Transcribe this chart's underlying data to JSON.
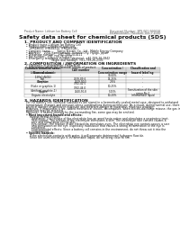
{
  "bg_color": "#ffffff",
  "header_left": "Product Name: Lithium Ion Battery Cell",
  "header_right_line1": "Document Number: SPS-001-000010",
  "header_right_line2": "Establishment / Revision: Dec.7.2010",
  "title": "Safety data sheet for chemical products (SDS)",
  "section1_title": "1. PRODUCT AND COMPANY IDENTIFICATION",
  "section1_lines": [
    "  • Product name: Lithium Ion Battery Cell",
    "  • Product code: Cylindrical-type cell",
    "      (IFR18650, IFR18650L, IFR18650A)",
    "  • Company name:       Sanyo Electric Co., Ltd., Mobile Energy Company",
    "  • Address:    2001 Kamikamachi, Sumoto-City, Hyogo, Japan",
    "  • Telephone number:    +81-799-24-4111",
    "  • Fax number:  +81-799-26-4129",
    "  • Emergency telephone number (daytime): +81-799-26-2842",
    "                              (Night and holiday): +81-799-26-2101"
  ],
  "section2_title": "2. COMPOSITION / INFORMATION ON INGREDIENTS",
  "section2_intro": "  • Substance or preparation: Preparation",
  "section2_sub": "  • Information about the chemical nature of product:",
  "table_col_headers": [
    "Common chemical name /\nGeneral name",
    "CAS number",
    "Concentration /\nConcentration range",
    "Classification and\nhazard labeling"
  ],
  "table_rows": [
    [
      "Lithium cobalt oxide\n(LiMnCoNiO4)",
      "-",
      "30-60%",
      "-"
    ],
    [
      "Iron",
      "7439-89-6",
      "15-25%",
      "-"
    ],
    [
      "Aluminum",
      "7429-90-5",
      "2-6%",
      "-"
    ],
    [
      "Graphite\n(Flake or graphite-1)\n(Artificial graphite-1)",
      "7782-42-5\n7782-44-0",
      "10-25%",
      "-"
    ],
    [
      "Copper",
      "7440-50-8",
      "5-15%",
      "Sensitization of the skin\ngroup No.2"
    ],
    [
      "Organic electrolyte",
      "-",
      "10-20%",
      "Inflammable liquid"
    ]
  ],
  "section3_title": "3. HAZARDS IDENTIFICATION",
  "section3_para1": "  For the battery cell, chemical substances are stored in a hermetically sealed metal case, designed to withstand",
  "section3_para2": "  temperature changes and pressure-stress combinations during normal use. As a result, during normal use, there is no",
  "section3_para3": "  physical danger of ignition or explosion and therefore danger of hazardous materials leakage.",
  "section3_para4": "  However, if exposed to a fire, added mechanical shocks, decomposes, when electro-discharge misuse, the gas inside cannot be operated. The battery cell case will be breached of fire-patterns, hazardous",
  "section3_para5": "  materials may be released.",
  "section3_para6": "  Moreover, if heated strongly by the surrounding fire, some gas may be emitted.",
  "effects_title": "  • Most important hazard and effects:",
  "human_title": "      Human health effects:",
  "human_lines": [
    "        Inhalation: The release of the electrolyte has an anesthesia action and stimulates a respiratory tract.",
    "        Skin contact: The release of the electrolyte stimulates a skin. The electrolyte skin contact causes a",
    "        sore and stimulation on the skin.",
    "        Eye contact: The release of the electrolyte stimulates eyes. The electrolyte eye contact causes a sore",
    "        and stimulation on the eye. Especially, substance that causes a strong inflammation of the eye is",
    "        contained.",
    "        Environmental effects: Since a battery cell remains in the environment, do not throw out it into the",
    "        environment."
  ],
  "specific_title": "  • Specific hazards:",
  "specific_lines": [
    "      If the electrolyte contacts with water, it will generate detrimental hydrogen fluoride.",
    "      Since the used electrolyte is inflammable liquid, do not bring close to fire."
  ]
}
